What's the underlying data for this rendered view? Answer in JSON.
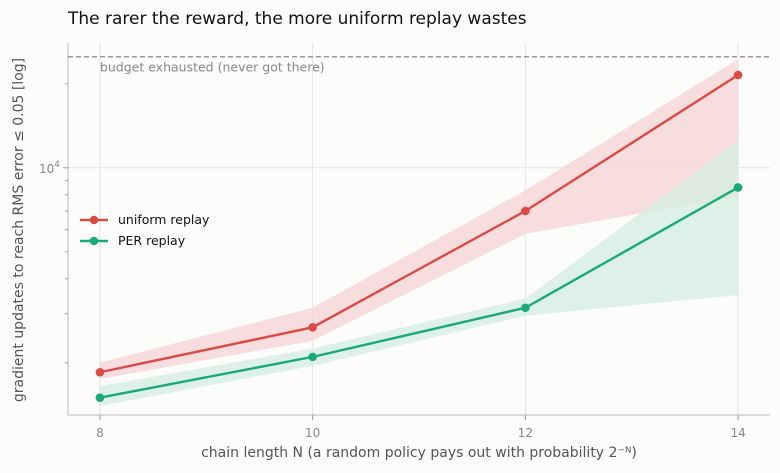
{
  "chart_data": {
    "type": "line",
    "title": "The rarer the reward, the more uniform replay wastes",
    "xlabel": "chain length N   (a random policy pays out with probability 2⁻ᴺ)",
    "ylabel": "gradient updates to reach RMS error ≤ 0.05  [log]",
    "x": [
      8,
      10,
      12,
      14
    ],
    "xlim": [
      7.7,
      14.3
    ],
    "ylim": [
      1300,
      28000
    ],
    "y_scale": "log",
    "xticks": [
      8,
      10,
      12,
      14
    ],
    "xtick_labels": [
      "8",
      "10",
      "12",
      "14"
    ],
    "yticks_major": [
      10000
    ],
    "ytick_major_labels": [
      "10",
      "4"
    ],
    "grid": true,
    "legend_position": "center-left",
    "budget": {
      "value": 25000,
      "label": "budget exhausted (never got there)",
      "color": "#888888"
    },
    "series": [
      {
        "name": "uniform replay",
        "color": "#dc4a45",
        "band_color": "#f7d3d4",
        "values": [
          1850,
          2680,
          7000,
          21500
        ],
        "lower": [
          1750,
          2400,
          5800,
          7900
        ],
        "upper": [
          2000,
          3150,
          8300,
          24500
        ]
      },
      {
        "name": "PER replay",
        "color": "#1aaa7a",
        "band_color": "#d3ede2",
        "values": [
          1500,
          2100,
          3150,
          8500
        ],
        "lower": [
          1400,
          1950,
          2950,
          3500
        ],
        "upper": [
          1650,
          2250,
          3400,
          12500
        ]
      }
    ]
  }
}
